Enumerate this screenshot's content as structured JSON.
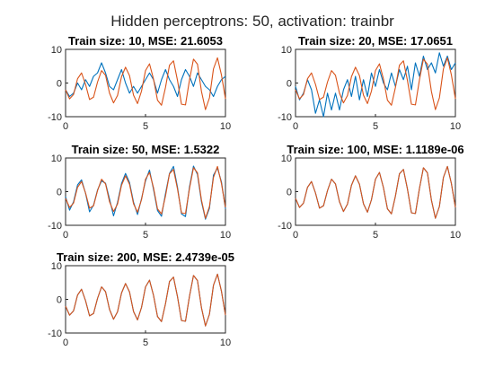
{
  "figure": {
    "title": "Hidden perceptrons: 50, activation: trainbr",
    "colors": {
      "prediction": "#0072BD",
      "target": "#D95319",
      "axis": "#262626"
    }
  },
  "chart_data": [
    {
      "type": "line",
      "title": "Train size: 10, MSE: 21.6053",
      "xlim": [
        0,
        10
      ],
      "ylim": [
        -10,
        10
      ],
      "xticks": [
        "0",
        "5",
        "10"
      ],
      "yticks": [
        "10",
        "0",
        "-10"
      ],
      "grid": false,
      "series": [
        {
          "role": "prediction",
          "color": "#0072BD",
          "x": [
            0,
            0.25,
            0.5,
            0.75,
            1,
            1.25,
            1.5,
            1.75,
            2,
            2.25,
            2.5,
            2.75,
            3,
            3.25,
            3.5,
            3.75,
            4,
            4.25,
            4.5,
            4.75,
            5,
            5.25,
            5.5,
            5.75,
            6,
            6.25,
            6.5,
            6.75,
            7,
            7.25,
            7.5,
            7.75,
            8,
            8.25,
            8.5,
            8.75,
            9,
            9.25,
            9.5,
            9.75,
            10
          ],
          "y": [
            -2,
            -4,
            -3,
            0,
            -2,
            1,
            -1,
            2,
            3,
            6,
            3,
            -1,
            -2,
            1,
            4,
            0,
            -3,
            -1,
            -3,
            -1,
            1,
            3,
            1,
            -3,
            1,
            4,
            1,
            -1,
            -4,
            1,
            4,
            2,
            -1,
            3,
            1,
            -1,
            -2,
            -4,
            -1,
            1,
            2
          ]
        },
        {
          "role": "target",
          "color": "#D95319",
          "x": [
            0,
            0.25,
            0.5,
            0.75,
            1,
            1.25,
            1.5,
            1.75,
            2,
            2.25,
            2.5,
            2.75,
            3,
            3.25,
            3.5,
            3.75,
            4,
            4.25,
            4.5,
            4.75,
            5,
            5.25,
            5.5,
            5.75,
            6,
            6.25,
            6.5,
            6.75,
            7,
            7.25,
            7.5,
            7.75,
            8,
            8.25,
            8.5,
            8.75,
            9,
            9.25,
            9.5,
            9.75,
            10
          ],
          "y": [
            -2,
            -4.7,
            -3.4,
            1.3,
            3,
            -0.4,
            -4.9,
            -4.2,
            0.3,
            3.7,
            2.3,
            -3,
            -5.9,
            -3.7,
            1.9,
            4.7,
            2.2,
            -3.6,
            -6.1,
            -2.4,
            3.7,
            5.7,
            1.2,
            -5.1,
            -6.6,
            -1.3,
            5.3,
            6.6,
            0.8,
            -6.3,
            -6.5,
            0.9,
            7.1,
            5.6,
            -2.5,
            -7.9,
            -4.4,
            4.2,
            7.5,
            2.4,
            -4.7
          ]
        }
      ]
    },
    {
      "type": "line",
      "title": "Train size: 20, MSE: 17.0651",
      "xlim": [
        0,
        10
      ],
      "ylim": [
        -10,
        10
      ],
      "xticks": [
        "0",
        "5",
        "10"
      ],
      "yticks": [
        "10",
        "0",
        "-10"
      ],
      "grid": false,
      "series": [
        {
          "role": "prediction",
          "color": "#0072BD",
          "x": [
            0,
            0.25,
            0.5,
            0.75,
            1,
            1.25,
            1.5,
            1.75,
            2,
            2.25,
            2.5,
            2.75,
            3,
            3.25,
            3.5,
            3.75,
            4,
            4.25,
            4.5,
            4.75,
            5,
            5.25,
            5.5,
            5.75,
            6,
            6.25,
            6.5,
            6.75,
            7,
            7.25,
            7.5,
            7.75,
            8,
            8.25,
            8.5,
            8.75,
            9,
            9.25,
            9.5,
            9.75,
            10
          ],
          "y": [
            -1,
            -5,
            -3,
            1,
            -2,
            -9,
            -5,
            -10,
            -3,
            -8,
            -3,
            -8,
            -2,
            1,
            -4,
            2,
            -5,
            1,
            -4,
            3,
            -1,
            4,
            0,
            -2,
            3,
            -1,
            4,
            1,
            5,
            -2,
            6,
            2,
            8,
            4,
            6,
            3,
            9,
            5,
            8,
            4,
            6
          ]
        },
        {
          "role": "target",
          "color": "#D95319",
          "x": [
            0,
            0.25,
            0.5,
            0.75,
            1,
            1.25,
            1.5,
            1.75,
            2,
            2.25,
            2.5,
            2.75,
            3,
            3.25,
            3.5,
            3.75,
            4,
            4.25,
            4.5,
            4.75,
            5,
            5.25,
            5.5,
            5.75,
            6,
            6.25,
            6.5,
            6.75,
            7,
            7.25,
            7.5,
            7.75,
            8,
            8.25,
            8.5,
            8.75,
            9,
            9.25,
            9.5,
            9.75,
            10
          ],
          "y": [
            -2,
            -4.7,
            -3.4,
            1.3,
            3,
            -0.4,
            -4.9,
            -4.2,
            0.3,
            3.7,
            2.3,
            -3,
            -5.9,
            -3.7,
            1.9,
            4.7,
            2.2,
            -3.6,
            -6.1,
            -2.4,
            3.7,
            5.7,
            1.2,
            -5.1,
            -6.6,
            -1.3,
            5.3,
            6.6,
            0.8,
            -6.3,
            -6.5,
            0.9,
            7.1,
            5.6,
            -2.5,
            -7.9,
            -4.4,
            4.2,
            7.5,
            2.4,
            -4.7
          ]
        }
      ]
    },
    {
      "type": "line",
      "title": "Train size: 50, MSE: 1.5322",
      "xlim": [
        0,
        10
      ],
      "ylim": [
        -10,
        10
      ],
      "xticks": [
        "0",
        "5",
        "10"
      ],
      "yticks": [
        "10",
        "0",
        "-10"
      ],
      "grid": false,
      "series": [
        {
          "role": "prediction",
          "color": "#0072BD",
          "x": [
            0,
            0.25,
            0.5,
            0.75,
            1,
            1.25,
            1.5,
            1.75,
            2,
            2.25,
            2.5,
            2.75,
            3,
            3.25,
            3.5,
            3.75,
            4,
            4.25,
            4.5,
            4.75,
            5,
            5.25,
            5.5,
            5.75,
            6,
            6.25,
            6.5,
            6.75,
            7,
            7.25,
            7.5,
            7.75,
            8,
            8.25,
            8.5,
            8.75,
            9,
            9.25,
            9.5,
            9.75,
            10
          ],
          "y": [
            -1.5,
            -5.5,
            -3,
            2,
            3.5,
            -0.5,
            -6,
            -4,
            0.5,
            3.2,
            2.5,
            -2.2,
            -7.2,
            -3.2,
            2.4,
            5.4,
            2.7,
            -3.1,
            -6.8,
            -2.1,
            3.2,
            6.4,
            0.7,
            -5.6,
            -7.3,
            -0.6,
            5.4,
            7.5,
            1.3,
            -6.6,
            -7.4,
            1.4,
            7.6,
            5.1,
            -3,
            -8.2,
            -4.9,
            4.9,
            7,
            2.9,
            -5.1
          ]
        },
        {
          "role": "target",
          "color": "#D95319",
          "x": [
            0,
            0.25,
            0.5,
            0.75,
            1,
            1.25,
            1.5,
            1.75,
            2,
            2.25,
            2.5,
            2.75,
            3,
            3.25,
            3.5,
            3.75,
            4,
            4.25,
            4.5,
            4.75,
            5,
            5.25,
            5.5,
            5.75,
            6,
            6.25,
            6.5,
            6.75,
            7,
            7.25,
            7.5,
            7.75,
            8,
            8.25,
            8.5,
            8.75,
            9,
            9.25,
            9.5,
            9.75,
            10
          ],
          "y": [
            -2,
            -4.7,
            -3.4,
            1.3,
            3,
            -0.4,
            -4.9,
            -4.2,
            0.3,
            3.7,
            2.3,
            -3,
            -5.9,
            -3.7,
            1.9,
            4.7,
            2.2,
            -3.6,
            -6.1,
            -2.4,
            3.7,
            5.7,
            1.2,
            -5.1,
            -6.6,
            -1.3,
            5.3,
            6.6,
            0.8,
            -6.3,
            -6.5,
            0.9,
            7.1,
            5.6,
            -2.5,
            -7.9,
            -4.4,
            4.2,
            7.5,
            2.4,
            -4.7
          ]
        }
      ]
    },
    {
      "type": "line",
      "title": "Train size: 100, MSE: 1.1189e-06",
      "xlim": [
        0,
        10
      ],
      "ylim": [
        -10,
        10
      ],
      "xticks": [
        "0",
        "5",
        "10"
      ],
      "yticks": [
        "10",
        "0",
        "-10"
      ],
      "grid": false,
      "series": [
        {
          "role": "prediction",
          "color": "#0072BD",
          "x": [
            0,
            0.25,
            0.5,
            0.75,
            1,
            1.25,
            1.5,
            1.75,
            2,
            2.25,
            2.5,
            2.75,
            3,
            3.25,
            3.5,
            3.75,
            4,
            4.25,
            4.5,
            4.75,
            5,
            5.25,
            5.5,
            5.75,
            6,
            6.25,
            6.5,
            6.75,
            7,
            7.25,
            7.5,
            7.75,
            8,
            8.25,
            8.5,
            8.75,
            9,
            9.25,
            9.5,
            9.75,
            10
          ],
          "y": [
            -2,
            -4.7,
            -3.4,
            1.3,
            3,
            -0.4,
            -4.9,
            -4.2,
            0.3,
            3.7,
            2.3,
            -3,
            -5.9,
            -3.7,
            1.9,
            4.7,
            2.2,
            -3.6,
            -6.1,
            -2.4,
            3.7,
            5.7,
            1.2,
            -5.1,
            -6.6,
            -1.3,
            5.3,
            6.6,
            0.8,
            -6.3,
            -6.5,
            0.9,
            7.1,
            5.6,
            -2.5,
            -7.9,
            -4.4,
            4.2,
            7.5,
            2.4,
            -4.7
          ]
        },
        {
          "role": "target",
          "color": "#D95319",
          "x": [
            0,
            0.25,
            0.5,
            0.75,
            1,
            1.25,
            1.5,
            1.75,
            2,
            2.25,
            2.5,
            2.75,
            3,
            3.25,
            3.5,
            3.75,
            4,
            4.25,
            4.5,
            4.75,
            5,
            5.25,
            5.5,
            5.75,
            6,
            6.25,
            6.5,
            6.75,
            7,
            7.25,
            7.5,
            7.75,
            8,
            8.25,
            8.5,
            8.75,
            9,
            9.25,
            9.5,
            9.75,
            10
          ],
          "y": [
            -2,
            -4.7,
            -3.4,
            1.3,
            3,
            -0.4,
            -4.9,
            -4.2,
            0.3,
            3.7,
            2.3,
            -3,
            -5.9,
            -3.7,
            1.9,
            4.7,
            2.2,
            -3.6,
            -6.1,
            -2.4,
            3.7,
            5.7,
            1.2,
            -5.1,
            -6.6,
            -1.3,
            5.3,
            6.6,
            0.8,
            -6.3,
            -6.5,
            0.9,
            7.1,
            5.6,
            -2.5,
            -7.9,
            -4.4,
            4.2,
            7.5,
            2.4,
            -4.7
          ]
        }
      ]
    },
    {
      "type": "line",
      "title": "Train size: 200, MSE: 2.4739e-05",
      "xlim": [
        0,
        10
      ],
      "ylim": [
        -10,
        10
      ],
      "xticks": [
        "0",
        "5",
        "10"
      ],
      "yticks": [
        "10",
        "0",
        "-10"
      ],
      "grid": false,
      "series": [
        {
          "role": "prediction",
          "color": "#0072BD",
          "x": [
            0,
            0.25,
            0.5,
            0.75,
            1,
            1.25,
            1.5,
            1.75,
            2,
            2.25,
            2.5,
            2.75,
            3,
            3.25,
            3.5,
            3.75,
            4,
            4.25,
            4.5,
            4.75,
            5,
            5.25,
            5.5,
            5.75,
            6,
            6.25,
            6.5,
            6.75,
            7,
            7.25,
            7.5,
            7.75,
            8,
            8.25,
            8.5,
            8.75,
            9,
            9.25,
            9.5,
            9.75,
            10
          ],
          "y": [
            -2,
            -4.7,
            -3.4,
            1.3,
            3,
            -0.4,
            -4.9,
            -4.2,
            0.3,
            3.7,
            2.3,
            -3,
            -5.9,
            -3.7,
            1.9,
            4.7,
            2.2,
            -3.6,
            -6.1,
            -2.4,
            3.7,
            5.7,
            1.2,
            -5.1,
            -6.6,
            -1.3,
            5.3,
            6.6,
            0.8,
            -6.3,
            -6.5,
            0.9,
            7.1,
            5.6,
            -2.5,
            -7.9,
            -4.4,
            4.2,
            7.5,
            2.4,
            -4.7
          ]
        },
        {
          "role": "target",
          "color": "#D95319",
          "x": [
            0,
            0.25,
            0.5,
            0.75,
            1,
            1.25,
            1.5,
            1.75,
            2,
            2.25,
            2.5,
            2.75,
            3,
            3.25,
            3.5,
            3.75,
            4,
            4.25,
            4.5,
            4.75,
            5,
            5.25,
            5.5,
            5.75,
            6,
            6.25,
            6.5,
            6.75,
            7,
            7.25,
            7.5,
            7.75,
            8,
            8.25,
            8.5,
            8.75,
            9,
            9.25,
            9.5,
            9.75,
            10
          ],
          "y": [
            -2,
            -4.7,
            -3.4,
            1.3,
            3,
            -0.4,
            -4.9,
            -4.2,
            0.3,
            3.7,
            2.3,
            -3,
            -5.9,
            -3.7,
            1.9,
            4.7,
            2.2,
            -3.6,
            -6.1,
            -2.4,
            3.7,
            5.7,
            1.2,
            -5.1,
            -6.6,
            -1.3,
            5.3,
            6.6,
            0.8,
            -6.3,
            -6.5,
            0.9,
            7.1,
            5.6,
            -2.5,
            -7.9,
            -4.4,
            4.2,
            7.5,
            2.4,
            -4.7
          ]
        }
      ]
    }
  ]
}
